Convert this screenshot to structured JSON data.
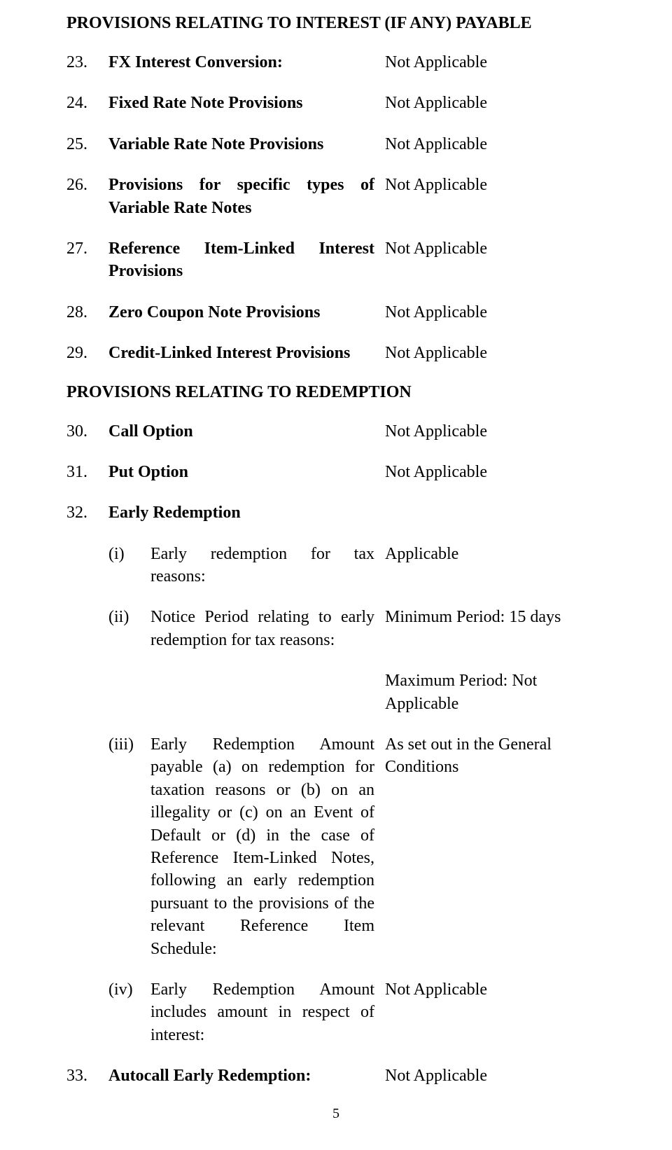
{
  "s1": {
    "heading": "PROVISIONS RELATING TO INTEREST (IF ANY) PAYABLE",
    "i23": {
      "num": "23.",
      "label": "FX Interest Conversion:",
      "value": "Not Applicable"
    },
    "i24": {
      "num": "24.",
      "label": "Fixed Rate Note Provisions",
      "value": "Not Applicable"
    },
    "i25": {
      "num": "25.",
      "label": "Variable Rate Note Provisions",
      "value": "Not Applicable"
    },
    "i26": {
      "num": "26.",
      "label": "Provisions for specific types of Variable Rate Notes",
      "value": "Not Applicable"
    },
    "i27": {
      "num": "27.",
      "label": "Reference Item-Linked Interest Provisions",
      "value": "Not Applicable"
    },
    "i28": {
      "num": "28.",
      "label": "Zero Coupon Note Provisions",
      "value": "Not Applicable"
    },
    "i29": {
      "num": "29.",
      "label": "Credit-Linked Interest Provisions",
      "value": "Not Applicable"
    }
  },
  "s2": {
    "heading": "PROVISIONS RELATING TO REDEMPTION",
    "i30": {
      "num": "30.",
      "label": "Call Option",
      "value": "Not Applicable"
    },
    "i31": {
      "num": "31.",
      "label": "Put Option",
      "value": "Not Applicable"
    },
    "i32": {
      "num": "32.",
      "label": "Early Redemption",
      "sub_i": {
        "roman": "(i)",
        "label": "Early redemption for tax reasons:",
        "value": "Applicable"
      },
      "sub_ii": {
        "roman": "(ii)",
        "label": "Notice Period relating to early redemption for tax reasons:",
        "value": "Minimum Period: 15 days"
      },
      "extra": {
        "value": "Maximum Period: Not Applicable"
      },
      "sub_iii": {
        "roman": "(iii)",
        "label": "Early Redemption Amount payable (a) on redemption for taxation reasons or (b) on an illegality or (c) on an Event of Default or (d) in the case of Reference Item-Linked Notes, following an early redemption pursuant to the provisions of the relevant Reference Item Schedule:",
        "value": "As set out in the General Conditions"
      },
      "sub_iv": {
        "roman": "(iv)",
        "label": "Early Redemption Amount includes amount in respect of interest:",
        "value": "Not Applicable"
      }
    },
    "i33": {
      "num": "33.",
      "label": "Autocall Early Redemption:",
      "value": "Not Applicable"
    }
  },
  "page_number": "5"
}
